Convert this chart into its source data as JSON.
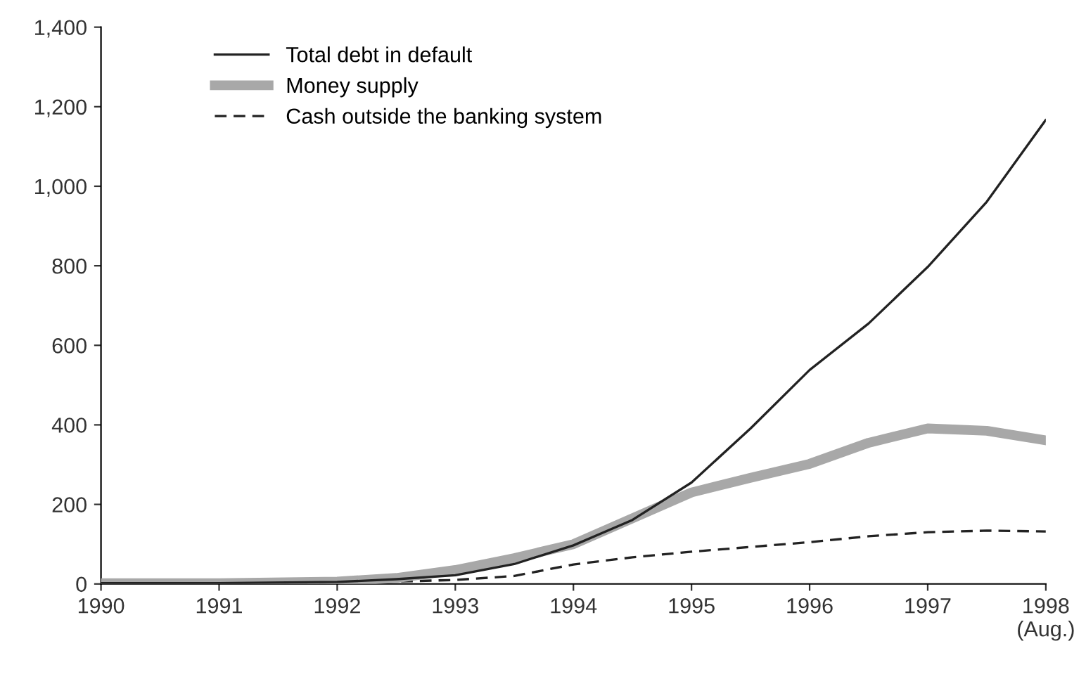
{
  "chart_data": {
    "type": "line",
    "x": [
      1990,
      1991,
      1992,
      1992.5,
      1993,
      1993.5,
      1994,
      1994.5,
      1995,
      1995.5,
      1996,
      1996.5,
      1997,
      1997.5,
      1998
    ],
    "series": [
      {
        "name": "Total debt in default",
        "color": "#222222",
        "line_style": "solid",
        "values": [
          2,
          2,
          5,
          12,
          22,
          50,
          97,
          161,
          255,
          391,
          538,
          655,
          797,
          961,
          1167
        ]
      },
      {
        "name": "Money supply",
        "color": "#a8a8a8",
        "line_style": "solid",
        "values": [
          2,
          2,
          6,
          15,
          35,
          65,
          100,
          165,
          230,
          267,
          302,
          355,
          391,
          385,
          361
        ]
      },
      {
        "name": "Cash outside the banking system",
        "color": "#222222",
        "line_style": "dashed",
        "values": [
          1,
          1,
          3,
          6,
          10,
          20,
          49,
          67,
          81,
          93,
          105,
          120,
          130,
          134,
          132
        ]
      }
    ],
    "xlim": [
      1990,
      1998
    ],
    "xticks": [
      1990,
      1991,
      1992,
      1993,
      1994,
      1995,
      1996,
      1997,
      {
        "value": 1998,
        "label": "1998\n(Aug.)"
      }
    ],
    "ylim": [
      0,
      1400
    ],
    "yticks": [
      0,
      200,
      400,
      600,
      800,
      {
        "value": 1000,
        "label": "1,000"
      },
      {
        "value": 1200,
        "label": "1,200"
      },
      {
        "value": 1400,
        "label": "1,400"
      }
    ],
    "legend": "top left",
    "grid": false
  }
}
